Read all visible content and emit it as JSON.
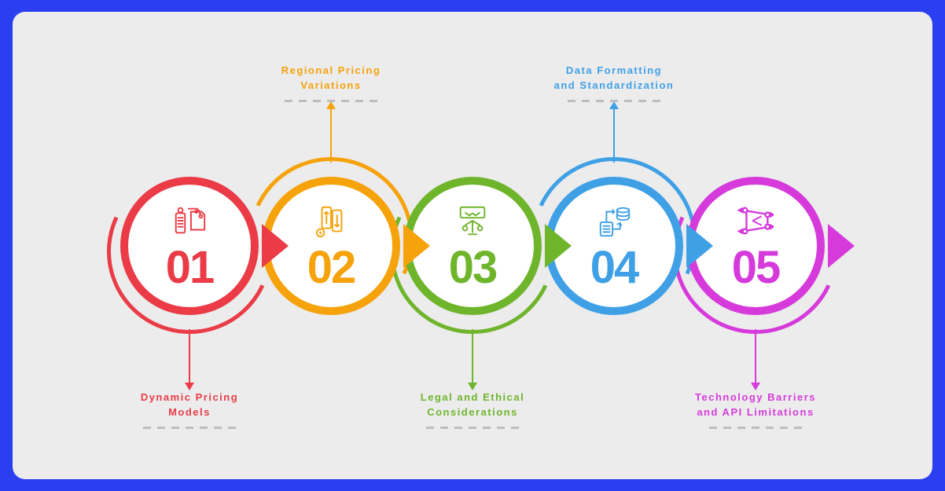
{
  "type": "infographic",
  "background": "#2a3fef",
  "card_bg": "#ececec",
  "card_radius": 16,
  "dash_color": "#bdbdbd",
  "steps": [
    {
      "num": "01",
      "color": "#ea3b46",
      "label_line1": "Dynamic Pricing",
      "label_line2": "Models",
      "label_pos": "bottom",
      "icon": "price-tags"
    },
    {
      "num": "02",
      "color": "#f6a20a",
      "label_line1": "Regional Pricing",
      "label_line2": "Variations",
      "label_pos": "top",
      "icon": "updown"
    },
    {
      "num": "03",
      "color": "#6fb52c",
      "label_line1": "Legal and Ethical",
      "label_line2": "Considerations",
      "label_pos": "bottom",
      "icon": "handshake-scale"
    },
    {
      "num": "04",
      "color": "#3fa0e6",
      "label_line1": "Data Formatting",
      "label_line2": "and Standardization",
      "label_pos": "top",
      "icon": "data-flow"
    },
    {
      "num": "05",
      "color": "#d63adb",
      "label_line1": "Technology Barriers",
      "label_line2": "and API Limitations",
      "label_pos": "bottom",
      "icon": "barrier"
    }
  ]
}
